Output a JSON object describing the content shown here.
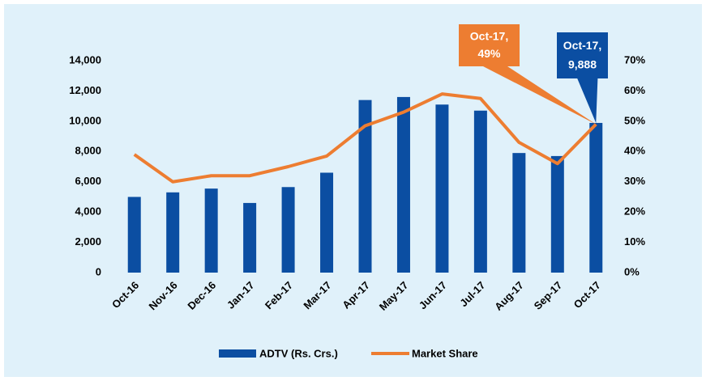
{
  "chart_data": {
    "type": "bar_line",
    "categories": [
      "Oct-16",
      "Nov-16",
      "Dec-16",
      "Jan-17",
      "Feb-17",
      "Mar-17",
      "Apr-17",
      "May-17",
      "Jun-17",
      "Jul-17",
      "Aug-17",
      "Sep-17",
      "Oct-17"
    ],
    "series": [
      {
        "name": "ADTV (Rs. Crs.)",
        "type": "bar",
        "color": "#0b4ea2",
        "axis": "y",
        "values": [
          5000,
          5300,
          5550,
          4600,
          5650,
          6600,
          11400,
          11600,
          11100,
          10700,
          7900,
          7700,
          9888
        ],
        "value_labels": [
          null,
          null,
          null,
          null,
          null,
          null,
          null,
          null,
          null,
          null,
          null,
          null,
          "9,888"
        ]
      },
      {
        "name": "Market Share",
        "type": "line",
        "color": "#ed7d31",
        "axis": "y2",
        "values": [
          39,
          30,
          32,
          32,
          35,
          38.5,
          48.5,
          53,
          59,
          57.5,
          43,
          36,
          49
        ],
        "value_labels": [
          null,
          null,
          null,
          null,
          null,
          null,
          null,
          null,
          null,
          null,
          null,
          null,
          "49%"
        ]
      }
    ],
    "annotations": [
      {
        "text": "Oct-17,"
      },
      {
        "text": "Oct-17,"
      }
    ],
    "ylim": [
      0,
      14000
    ],
    "yticks": [
      0,
      {
        "value": 2000,
        "label": "2,000"
      },
      {
        "value": 4000,
        "label": "4,000"
      },
      {
        "value": 6000,
        "label": "6,000"
      },
      {
        "value": 8000,
        "label": "8,000"
      },
      {
        "value": 10000,
        "label": "10,000"
      },
      {
        "value": 12000,
        "label": "12,000"
      },
      {
        "value": 14000,
        "label": "14,000"
      }
    ],
    "y2lim": [
      0,
      70
    ],
    "y2ticks": [
      {
        "value": 0,
        "label": "0%"
      },
      {
        "value": 10,
        "label": "10%"
      },
      {
        "value": 20,
        "label": "20%"
      },
      {
        "value": 30,
        "label": "30%"
      },
      {
        "value": 40,
        "label": "40%"
      },
      {
        "value": 50,
        "label": "50%"
      },
      {
        "value": 60,
        "label": "60%"
      },
      {
        "value": 70,
        "label": "70%"
      }
    ],
    "grid": false,
    "legend": "bottom"
  }
}
